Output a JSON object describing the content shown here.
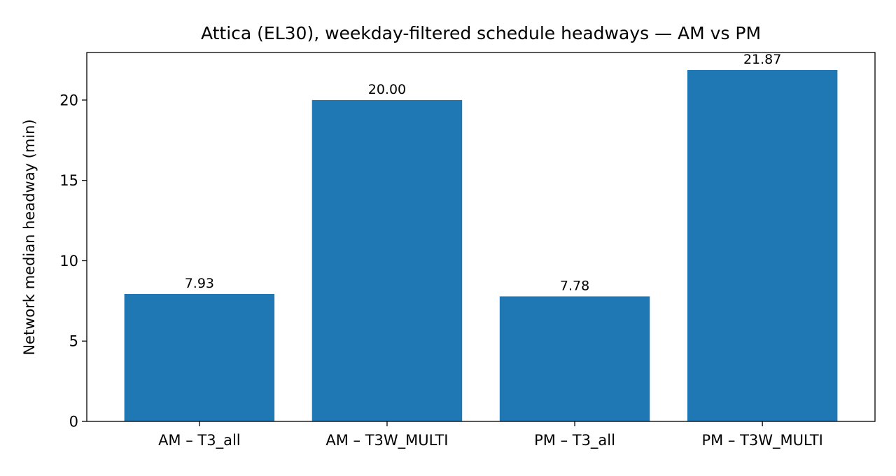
{
  "chart_data": {
    "type": "bar",
    "title": "Attica (EL30), weekday-filtered schedule headways — AM vs PM",
    "xlabel": "",
    "ylabel": "Network median headway (min)",
    "categories": [
      "AM – T3_all",
      "AM – T3W_MULTI",
      "PM – T3_all",
      "PM – T3W_MULTI"
    ],
    "values": [
      7.93,
      20.0,
      7.78,
      21.87
    ],
    "value_labels": [
      "7.93",
      "20.00",
      "7.78",
      "21.87"
    ],
    "ylim": [
      0,
      22.96
    ],
    "yticks": [
      0,
      5,
      10,
      15,
      20
    ],
    "ytick_labels": [
      "0",
      "5",
      "10",
      "15",
      "20"
    ],
    "bar_color": "#1f77b4",
    "grid": false,
    "legend": "none"
  }
}
